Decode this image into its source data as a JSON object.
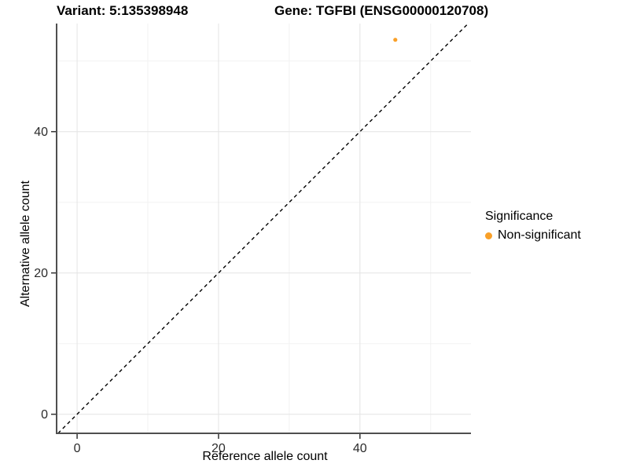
{
  "chart_data": {
    "type": "scatter",
    "title_left": "Variant: 5:135398948",
    "title_right": "Gene: TGFBI (ENSG00000120708)",
    "xlabel": "Reference allele count",
    "ylabel": "Alternative allele count",
    "xlim": [
      -2.9,
      55.7
    ],
    "ylim": [
      -2.7,
      55.3
    ],
    "xticks": [
      0,
      20,
      40
    ],
    "yticks": [
      0,
      20,
      40
    ],
    "xticks_minor": [
      10,
      30,
      50
    ],
    "yticks_minor": [
      10,
      30,
      50
    ],
    "grid": true,
    "points": [
      {
        "x": 45,
        "y": 53,
        "series": "Non-significant"
      }
    ],
    "identity_line": {
      "style": "dashed",
      "color": "#000000"
    },
    "legend": {
      "title": "Significance",
      "position": "right",
      "items": [
        {
          "label": "Non-significant",
          "color": "#F9A029"
        }
      ]
    },
    "colors": {
      "point": "#F9A029",
      "grid_major": "#E4E4E4",
      "grid_minor": "#F2F2F2",
      "axis_line": "#4F4F4F",
      "tick": "#333333",
      "tick_label": "#2B2B2B"
    }
  }
}
